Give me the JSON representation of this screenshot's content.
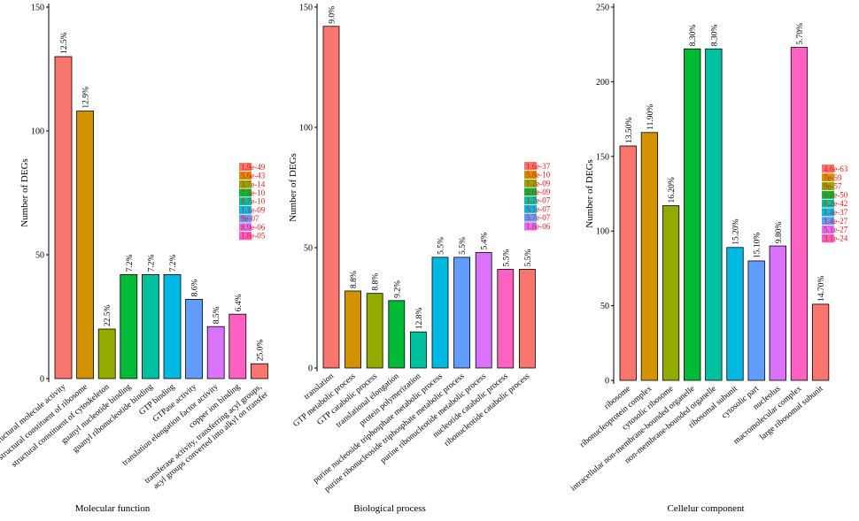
{
  "chart_data": [
    {
      "type": "bar",
      "xlabel": "Molecular function",
      "ylabel": "Number of DEGs",
      "ylim": [
        0,
        150
      ],
      "yticks": [
        0,
        50,
        100,
        150
      ],
      "categories": [
        "structural molecule activity",
        "structural constituent of ribosome",
        "structural constituent of cytoskeleton",
        "guanyl nucleotide binding",
        "guanyl ribonucleotide binding",
        "GTP binding",
        "GTPase activity",
        "translation elongation factor activity",
        "copper ion binding",
        "transferase activity, transferring acyl groups,\nacyl groups converted into alkyl on transfer"
      ],
      "values": [
        130,
        108,
        20,
        42,
        42,
        42,
        32,
        21,
        26,
        6
      ],
      "labels": [
        "12.5%",
        "12.9%",
        "22.5%",
        "7.2%",
        "7.2%",
        "7.2%",
        "8.6%",
        "8.5%",
        "6.4%",
        "25.0%"
      ],
      "colors": [
        "#F8766D",
        "#D39200",
        "#93AA00",
        "#00BA38",
        "#00C19F",
        "#00B9E3",
        "#619CFF",
        "#DB72FB",
        "#FF61C3"
      ],
      "legend": [
        "1.9e-49",
        "5.6e-43",
        "3.7e-14",
        "7.5e-10",
        "8.7e-10",
        "1.1e-09",
        "9e-07",
        "8.9e-06",
        "1.8e-05"
      ]
    },
    {
      "type": "bar",
      "xlabel": "Biological process",
      "ylabel": "Number of DEGs",
      "ylim": [
        0,
        150
      ],
      "yticks": [
        0,
        50,
        100,
        150
      ],
      "categories": [
        "translation",
        "GTP metabolic process",
        "GTP catabolic process",
        "translational elongation",
        "protein polymerization",
        "purine nucleoside triphosphate metabolic process",
        "purine ribonucleoside triphosphate metabolic process",
        "purine ribonucleotide metabolic process",
        "nucleotide catabolic process",
        "ribonucleotide catabolic process"
      ],
      "values": [
        142,
        32,
        31,
        28,
        15,
        46,
        46,
        48,
        41,
        41
      ],
      "labels": [
        "9.0%",
        "8.8%",
        "8.8%",
        "9.2%",
        "12.8%",
        "5.5%",
        "5.5%",
        "5.4%",
        "5.5%",
        "5.5%"
      ],
      "colors": [
        "#F8766D",
        "#D39200",
        "#93AA00",
        "#00BA38",
        "#00C19F",
        "#00B9E3",
        "#619CFF",
        "#DB72FB",
        "#FF61C3"
      ],
      "legend": [
        "1.6e-37",
        "5.8e-10",
        "1.2e-09",
        "2.6e-09",
        "1.7e-07",
        "5.1e-07",
        "5.7e-07",
        "1.8e-06"
      ]
    },
    {
      "type": "bar",
      "xlabel": "Cellelur component",
      "ylabel": "Number of DEGs",
      "ylim": [
        0,
        250
      ],
      "yticks": [
        0,
        50,
        100,
        150,
        200,
        250
      ],
      "categories": [
        "ribosome",
        "ribonucleoprotein complex",
        "cytosolic ribosome",
        "intracellular non-membrane-bounded organelle",
        "non-membrane-bounded organelle",
        "ribosomal subunit",
        "cytosolic part",
        "nucleolus",
        "macromolecular complex",
        "large ribosomal subunit"
      ],
      "values": [
        157,
        166,
        117,
        222,
        222,
        89,
        80,
        90,
        223,
        51
      ],
      "labels": [
        "13.50%",
        "11.90%",
        "16.20%",
        "8.30%",
        "8.30%",
        "15.20%",
        "15.10%",
        "9.80%",
        "5.70%",
        "14.70%"
      ],
      "colors": [
        "#F8766D",
        "#D39200",
        "#93AA00",
        "#00BA38",
        "#00C19F",
        "#00B9E3",
        "#619CFF",
        "#DB72FB",
        "#FF61C3"
      ],
      "legend": [
        "4.6e-63",
        "7e-59",
        "9e-57",
        "9.2e-50",
        "8.2e-42",
        "1.4e-37",
        "1.4e-27",
        "5.1e-27",
        "3.1e-24"
      ]
    }
  ]
}
